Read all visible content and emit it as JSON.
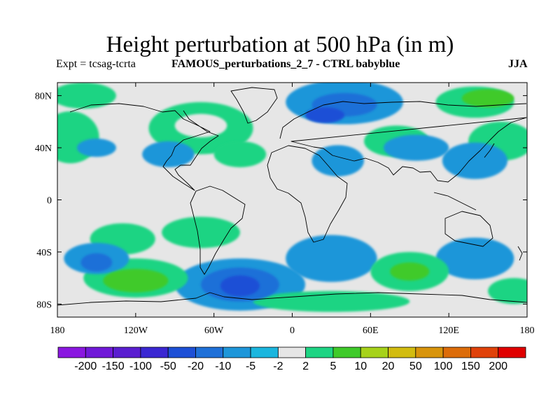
{
  "title": "Height perturbation at 500 hPa (in m)",
  "left_subtitle": "Expt = tcsag-tcrta",
  "center_subtitle": "FAMOUS_perturbations_2_7 - CTRL babyblue",
  "right_subtitle": "JJA",
  "map": {
    "projection": "cylindrical equidistant",
    "lon_range": [
      -180,
      180
    ],
    "lat_range": [
      -90,
      90
    ],
    "lat_ticks": [
      {
        "value": 80,
        "label": "80N"
      },
      {
        "value": 40,
        "label": "40N"
      },
      {
        "value": 0,
        "label": "0"
      },
      {
        "value": -40,
        "label": "40S"
      },
      {
        "value": -80,
        "label": "80S"
      }
    ],
    "lon_ticks": [
      {
        "value": -180,
        "label": "180"
      },
      {
        "value": -120,
        "label": "120W"
      },
      {
        "value": -60,
        "label": "60W"
      },
      {
        "value": 0,
        "label": "0"
      },
      {
        "value": 60,
        "label": "60E"
      },
      {
        "value": 120,
        "label": "120E"
      },
      {
        "value": 180,
        "label": "180"
      }
    ],
    "background_color": "#e6e6e6",
    "coastline_color": "#000000"
  },
  "colorbar": {
    "colors": [
      "#8a17e0",
      "#7019d8",
      "#5a1ed0",
      "#3a27d2",
      "#1d4fd6",
      "#1f70d8",
      "#1e96d9",
      "#1bb6de",
      "#e6e6e6",
      "#1ed483",
      "#3fca2a",
      "#a6d21a",
      "#d2bc10",
      "#d8940c",
      "#dc6c0a",
      "#e0420a",
      "#e00000"
    ],
    "labels": [
      "-200",
      "-150",
      "-100",
      "-50",
      "-20",
      "-10",
      "-5",
      "-2",
      "2",
      "5",
      "10",
      "20",
      "50",
      "100",
      "150",
      "200"
    ]
  },
  "anomalies": [
    {
      "lon": -160,
      "lat": 80,
      "rx": 25,
      "ry": 10,
      "level": 5
    },
    {
      "lon": -70,
      "lat": 55,
      "rx": 40,
      "ry": 20,
      "level": 5
    },
    {
      "lon": -70,
      "lat": 57,
      "rx": 20,
      "ry": 9,
      "level": 7
    },
    {
      "lon": -170,
      "lat": 48,
      "rx": 22,
      "ry": 20,
      "level": 5
    },
    {
      "lon": -150,
      "lat": 40,
      "rx": 15,
      "ry": 7,
      "level": -5
    },
    {
      "lon": -95,
      "lat": 35,
      "rx": 20,
      "ry": 10,
      "level": -5
    },
    {
      "lon": 40,
      "lat": 75,
      "rx": 45,
      "ry": 17,
      "level": -5
    },
    {
      "lon": 40,
      "lat": 73,
      "rx": 25,
      "ry": 9,
      "level": -10
    },
    {
      "lon": 25,
      "lat": 65,
      "rx": 15,
      "ry": 6,
      "level": -20
    },
    {
      "lon": -40,
      "lat": 35,
      "rx": 20,
      "ry": 10,
      "level": 5
    },
    {
      "lon": 35,
      "lat": 30,
      "rx": 20,
      "ry": 12,
      "level": -5
    },
    {
      "lon": 80,
      "lat": 45,
      "rx": 25,
      "ry": 12,
      "level": 5
    },
    {
      "lon": 95,
      "lat": 40,
      "rx": 25,
      "ry": 10,
      "level": -5
    },
    {
      "lon": 140,
      "lat": 75,
      "rx": 30,
      "ry": 12,
      "level": 5
    },
    {
      "lon": 150,
      "lat": 78,
      "rx": 20,
      "ry": 7,
      "level": 10
    },
    {
      "lon": 160,
      "lat": 45,
      "rx": 25,
      "ry": 15,
      "level": 5
    },
    {
      "lon": 140,
      "lat": 30,
      "rx": 25,
      "ry": 14,
      "level": -5
    },
    {
      "lon": -130,
      "lat": -30,
      "rx": 25,
      "ry": 12,
      "level": 5
    },
    {
      "lon": -70,
      "lat": -25,
      "rx": 30,
      "ry": 12,
      "level": 5
    },
    {
      "lon": -150,
      "lat": -45,
      "rx": 25,
      "ry": 12,
      "level": -5
    },
    {
      "lon": -150,
      "lat": -48,
      "rx": 12,
      "ry": 7,
      "level": -10
    },
    {
      "lon": -120,
      "lat": -60,
      "rx": 40,
      "ry": 15,
      "level": 5
    },
    {
      "lon": -120,
      "lat": -62,
      "rx": 25,
      "ry": 9,
      "level": 10
    },
    {
      "lon": -40,
      "lat": -65,
      "rx": 50,
      "ry": 20,
      "level": -5
    },
    {
      "lon": -40,
      "lat": -65,
      "rx": 30,
      "ry": 13,
      "level": -10
    },
    {
      "lon": -40,
      "lat": -66,
      "rx": 15,
      "ry": 8,
      "level": -20
    },
    {
      "lon": 30,
      "lat": -45,
      "rx": 35,
      "ry": 18,
      "level": -5
    },
    {
      "lon": 90,
      "lat": -55,
      "rx": 30,
      "ry": 15,
      "level": 5
    },
    {
      "lon": 90,
      "lat": -55,
      "rx": 15,
      "ry": 7,
      "level": 10
    },
    {
      "lon": 140,
      "lat": -45,
      "rx": 30,
      "ry": 16,
      "level": -5
    },
    {
      "lon": 170,
      "lat": -70,
      "rx": 20,
      "ry": 10,
      "level": 5
    },
    {
      "lon": 30,
      "lat": -78,
      "rx": 60,
      "ry": 8,
      "level": 5
    }
  ]
}
